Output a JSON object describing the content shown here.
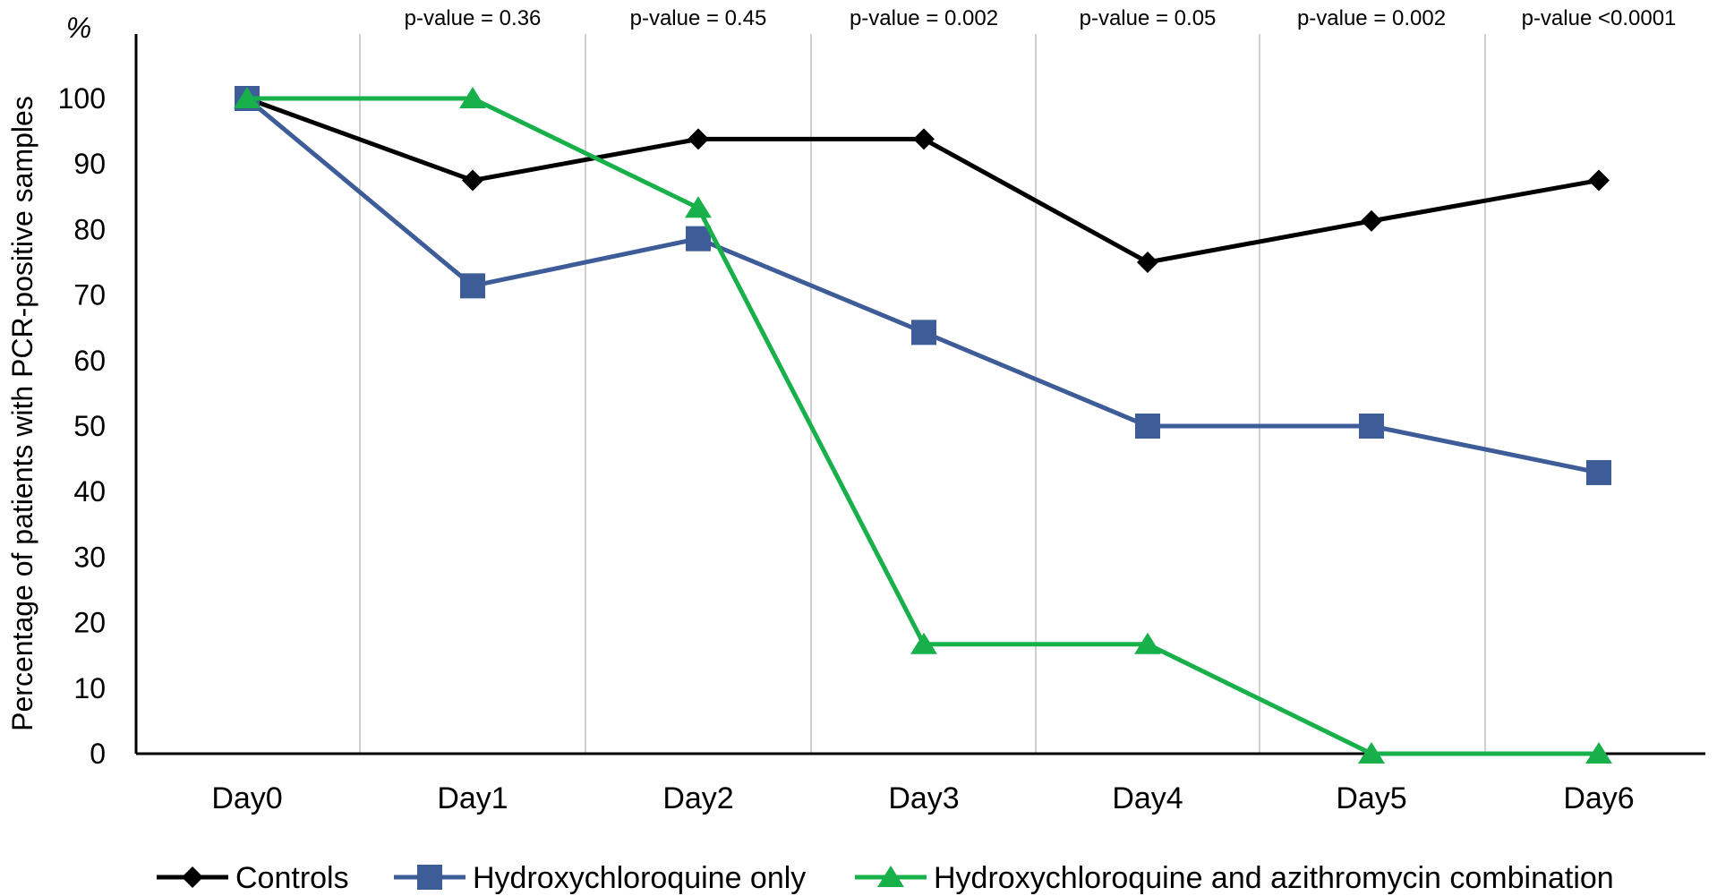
{
  "chart_data": {
    "type": "line",
    "title": "",
    "unit_label": "%",
    "ylabel": "Percentage of patients with PCR-positive samples",
    "xlabel": "",
    "categories": [
      "Day0",
      "Day1",
      "Day2",
      "Day3",
      "Day4",
      "Day5",
      "Day6"
    ],
    "ylim": [
      0,
      100
    ],
    "yticks": [
      0,
      10,
      20,
      30,
      40,
      50,
      60,
      70,
      80,
      90,
      100
    ],
    "pvalues": [
      "p-value = 0.36",
      "p-value = 0.45",
      "p-value = 0.002",
      "p-value = 0.05",
      "p-value = 0.002",
      "p-value <0.0001"
    ],
    "grid": "vertical",
    "legend_position": "bottom",
    "series": [
      {
        "name": "Controls",
        "color": "#000000",
        "marker": "diamond",
        "values": [
          100,
          87.5,
          93.8,
          93.8,
          75,
          81.3,
          87.5
        ]
      },
      {
        "name": "Hydroxychloroquine only",
        "color": "#3d5c98",
        "marker": "square",
        "values": [
          100,
          71.4,
          78.6,
          64.3,
          50,
          50,
          42.9
        ]
      },
      {
        "name": "Hydroxychloroquine and azithromycin combination",
        "color": "#17b04a",
        "marker": "triangle",
        "values": [
          100,
          100,
          83.3,
          16.7,
          16.7,
          0,
          0
        ]
      }
    ]
  }
}
